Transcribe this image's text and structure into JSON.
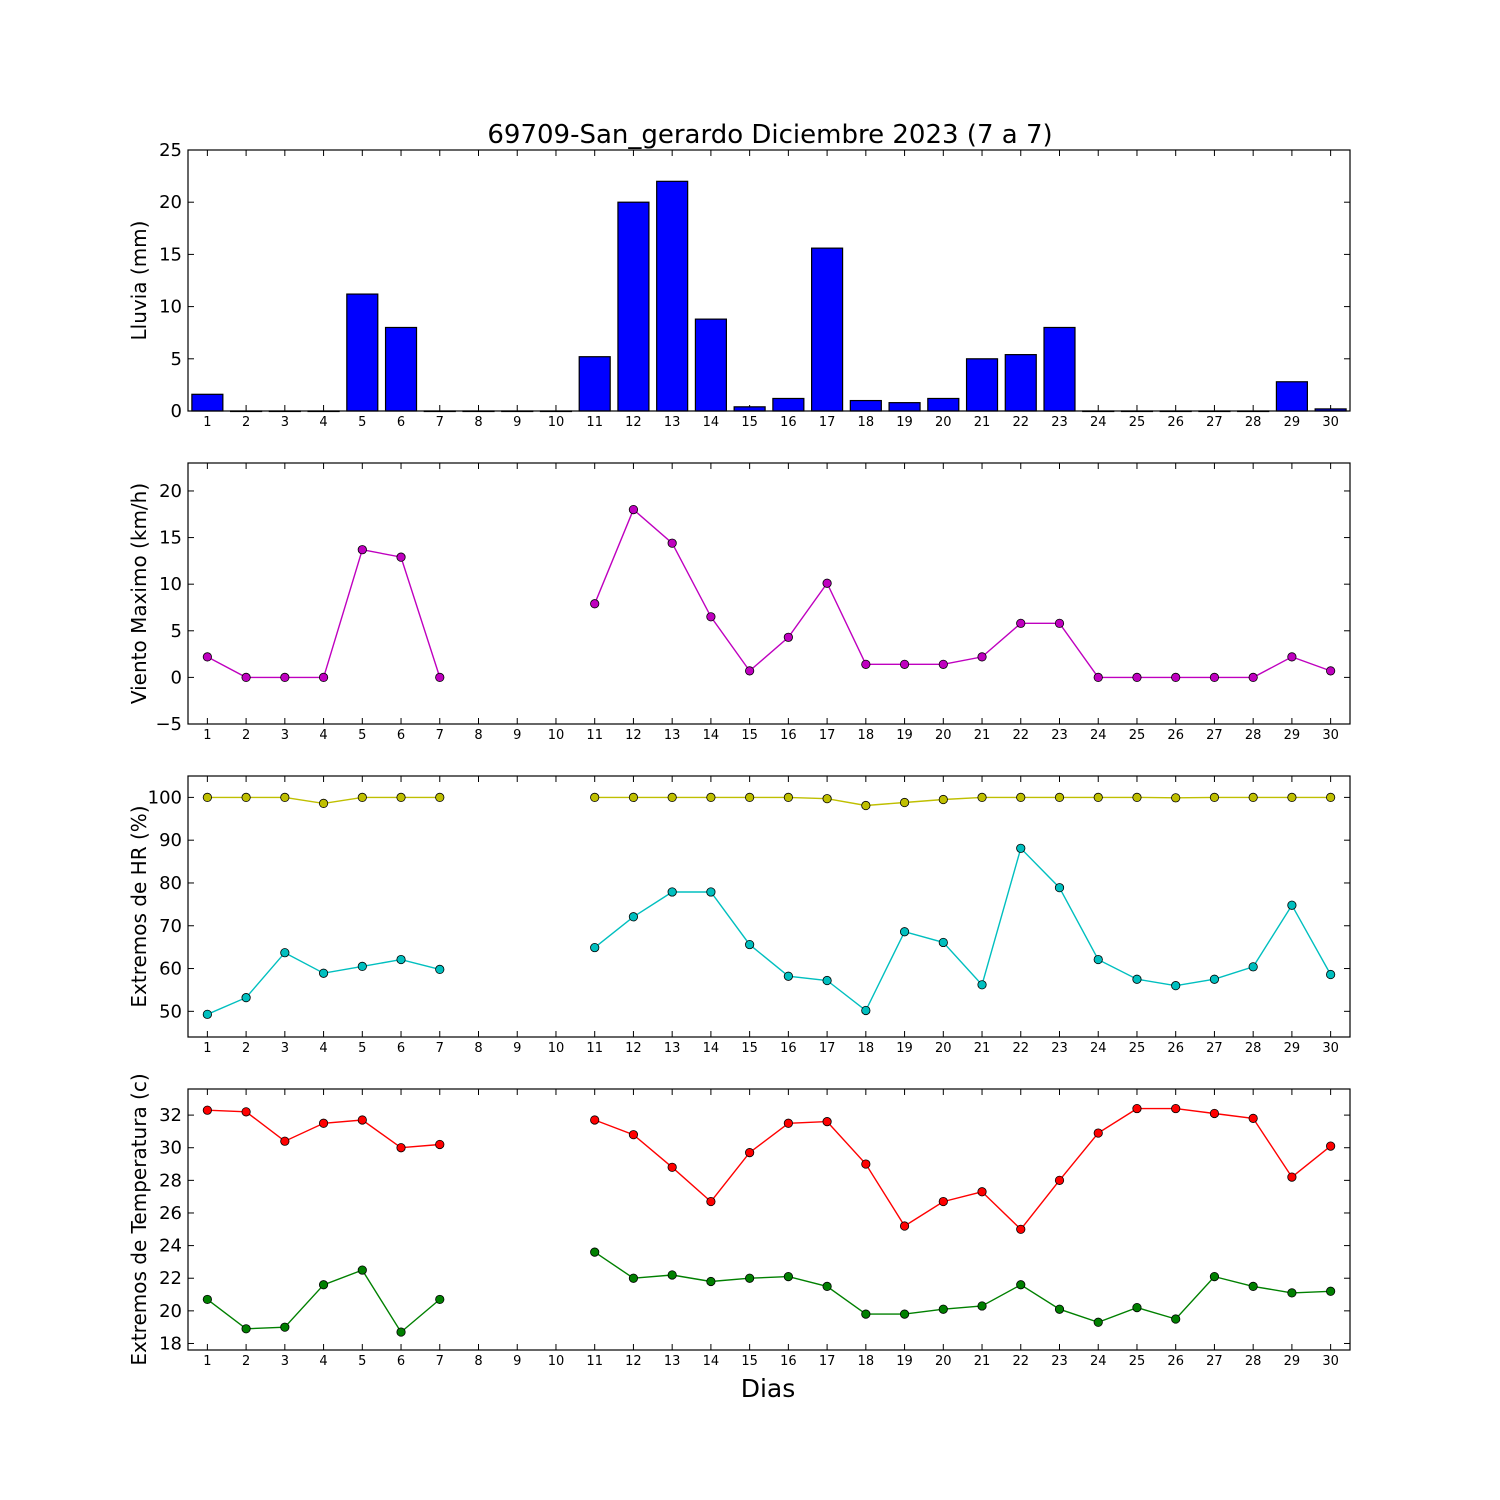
{
  "chart_data": {
    "type": "multi-panel",
    "title": "69709-San_gerardo Diciembre 2023  (7 a 7)",
    "xlabel": "Dias",
    "days": [
      1,
      2,
      3,
      4,
      5,
      6,
      7,
      8,
      9,
      10,
      11,
      12,
      13,
      14,
      15,
      16,
      17,
      18,
      19,
      20,
      21,
      22,
      23,
      24,
      25,
      26,
      27,
      28,
      29,
      30
    ],
    "panels": [
      {
        "type": "bar",
        "ylabel": "Lluvia (mm)",
        "ylim": [
          0,
          25
        ],
        "yticks": [
          0,
          5,
          10,
          15,
          20,
          25
        ],
        "series": [
          {
            "color": "#0000ff",
            "values": [
              1.6,
              0,
              0,
              0,
              11.2,
              8.0,
              0,
              0,
              0,
              0,
              5.2,
              20.0,
              22.0,
              8.8,
              0.4,
              1.2,
              15.6,
              1.0,
              0.8,
              1.2,
              5.0,
              5.4,
              8.0,
              0,
              0,
              0,
              0,
              0,
              2.8,
              0.2
            ]
          }
        ]
      },
      {
        "type": "line",
        "ylabel": "Viento Maximo (km/h)",
        "ylim": [
          -5,
          23
        ],
        "yticks": [
          -5,
          0,
          5,
          10,
          15,
          20
        ],
        "series": [
          {
            "color": "#bf00bf",
            "values": [
              2.2,
              0,
              0,
              0,
              13.7,
              12.9,
              0,
              null,
              null,
              null,
              7.9,
              18.0,
              14.4,
              6.5,
              0.7,
              4.3,
              10.1,
              1.4,
              1.4,
              1.4,
              2.2,
              5.8,
              5.8,
              0,
              0,
              0,
              0,
              0,
              2.2,
              0.7
            ]
          }
        ]
      },
      {
        "type": "line",
        "ylabel": "Extremos de HR (%)",
        "ylim": [
          44,
          105
        ],
        "yticks": [
          50,
          60,
          70,
          80,
          90,
          100
        ],
        "series": [
          {
            "color": "#bfbf00",
            "values": [
              100,
              100,
              100,
              98.6,
              100,
              100,
              100,
              null,
              null,
              null,
              100,
              100,
              100,
              100,
              100,
              100,
              99.7,
              98.1,
              98.8,
              99.5,
              100,
              100,
              100,
              100,
              100,
              99.9,
              100,
              100,
              100,
              100
            ]
          },
          {
            "color": "#00bfbf",
            "values": [
              49.3,
              53.2,
              63.7,
              58.9,
              60.5,
              62.1,
              59.8,
              null,
              null,
              null,
              64.9,
              72.1,
              77.9,
              77.9,
              65.6,
              58.2,
              57.2,
              50.2,
              68.6,
              66.1,
              56.2,
              88.1,
              78.9,
              62.1,
              57.5,
              56.0,
              57.5,
              60.4,
              74.8,
              58.6
            ]
          }
        ]
      },
      {
        "type": "line",
        "ylabel": "Extremos de Temperatura (c)",
        "ylim": [
          17.6,
          33.6
        ],
        "yticks": [
          18,
          20,
          22,
          24,
          26,
          28,
          30,
          32
        ],
        "series": [
          {
            "color": "#ff0000",
            "values": [
              32.3,
              32.2,
              30.4,
              31.5,
              31.7,
              30.0,
              30.2,
              null,
              null,
              null,
              31.7,
              30.8,
              28.8,
              26.7,
              29.7,
              31.5,
              31.6,
              29.0,
              25.2,
              26.7,
              27.3,
              25.0,
              28.0,
              30.9,
              32.4,
              32.4,
              32.1,
              31.8,
              28.2,
              30.1
            ]
          },
          {
            "color": "#008000",
            "values": [
              20.7,
              18.9,
              19.0,
              21.6,
              22.5,
              18.7,
              20.7,
              null,
              null,
              null,
              23.6,
              22.0,
              22.2,
              21.8,
              22.0,
              22.1,
              21.5,
              19.8,
              19.8,
              20.1,
              20.3,
              21.6,
              20.1,
              19.3,
              20.2,
              19.5,
              22.1,
              21.5,
              21.1,
              21.2
            ]
          }
        ]
      }
    ]
  }
}
